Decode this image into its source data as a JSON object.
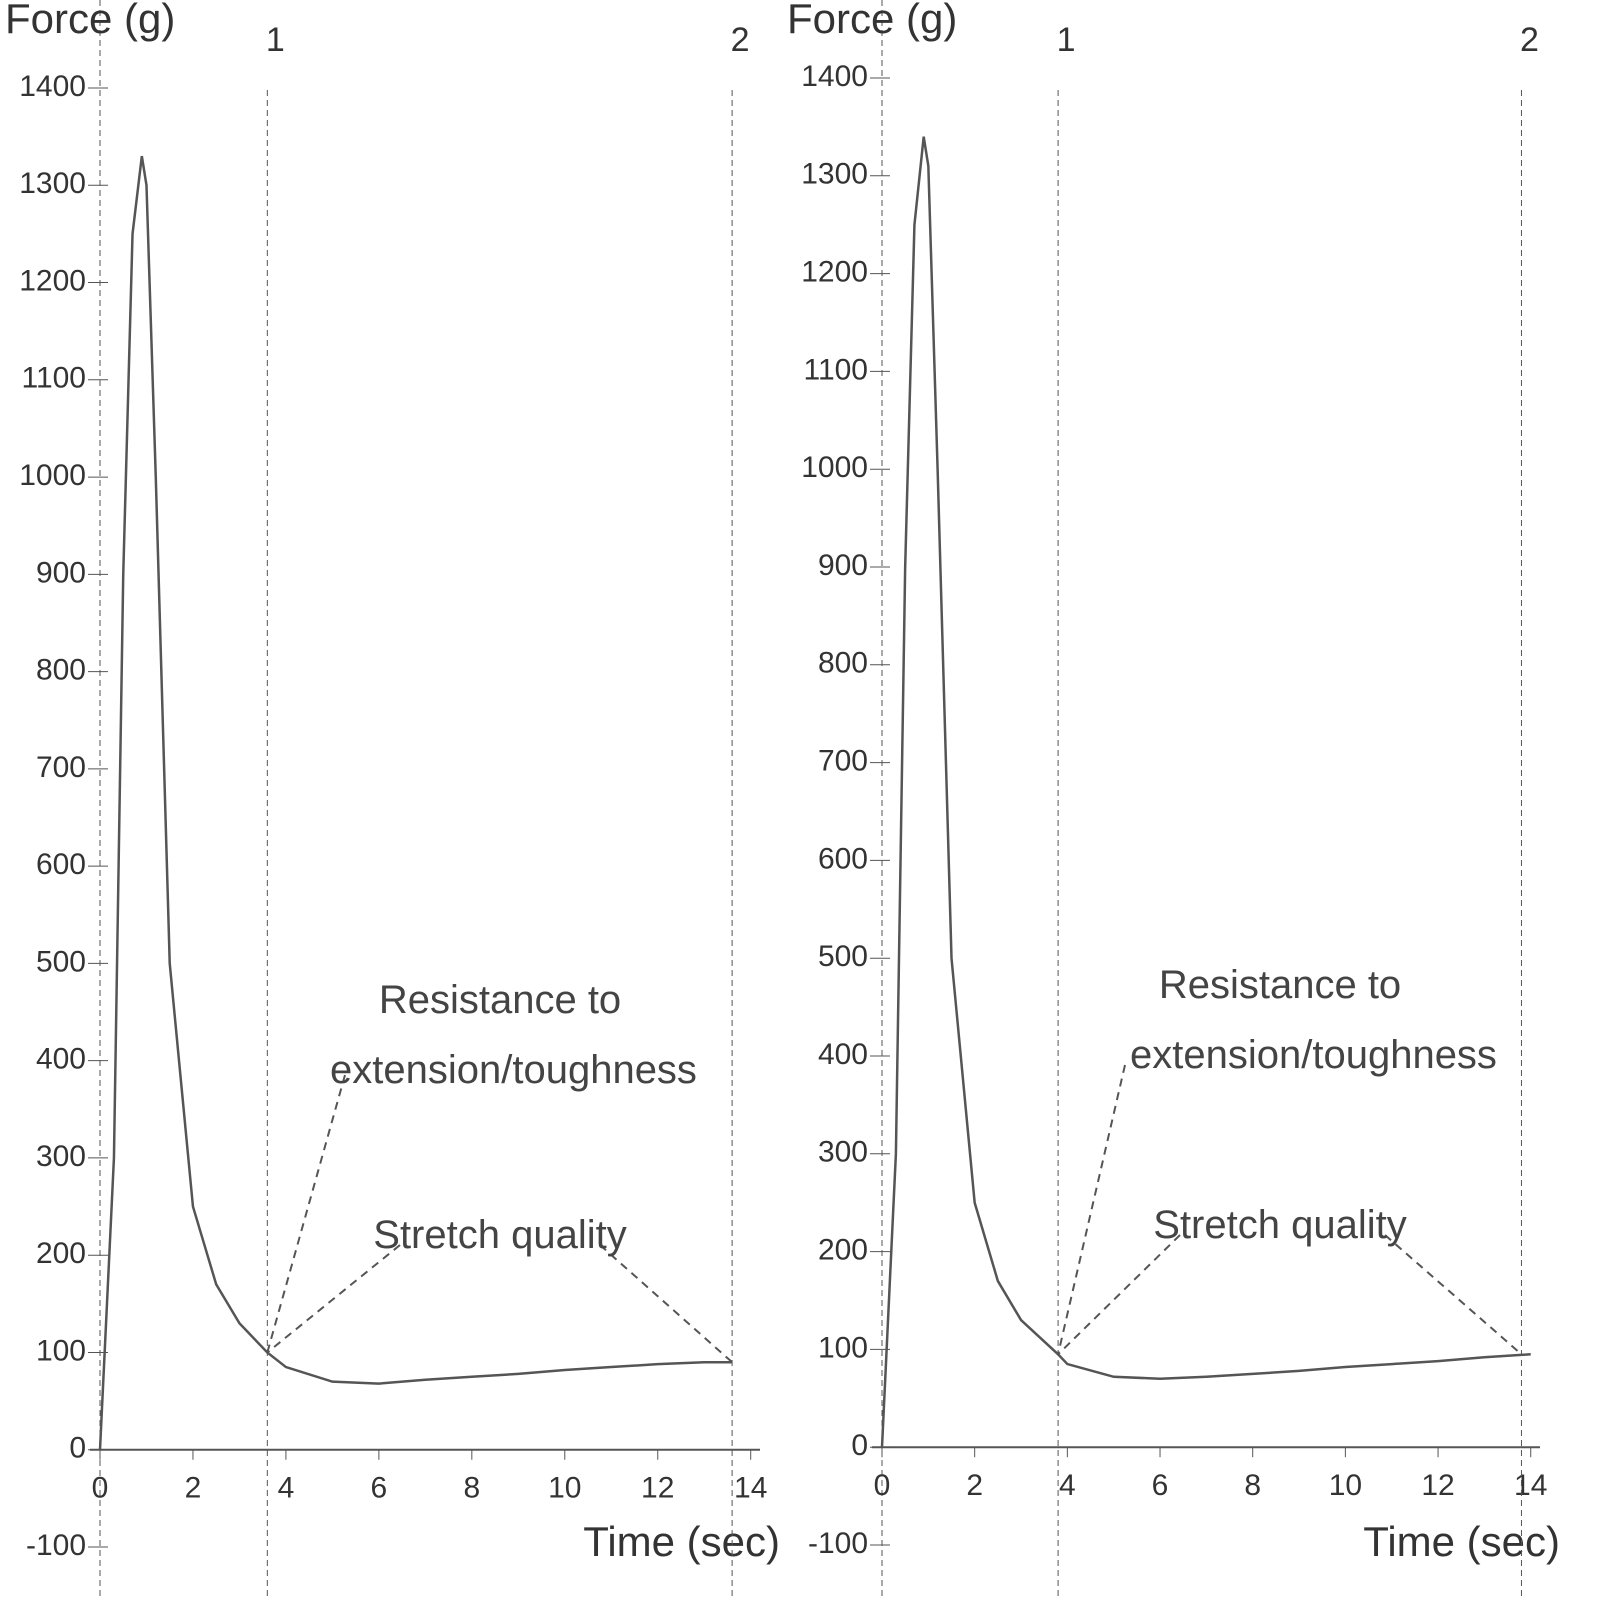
{
  "chart_data": [
    {
      "type": "line",
      "x_label": "Time (sec)",
      "y_label": "Force (g)",
      "color": "#555555",
      "x": [
        0,
        0.3,
        0.5,
        0.7,
        0.9,
        1.0,
        1.2,
        1.5,
        2,
        2.5,
        3,
        3.6,
        4,
        5,
        6,
        7,
        8,
        9,
        10,
        11,
        12,
        13,
        13.6
      ],
      "values": [
        0,
        300,
        900,
        1250,
        1330,
        1300,
        1000,
        500,
        250,
        170,
        130,
        100,
        85,
        70,
        68,
        72,
        75,
        78,
        82,
        85,
        88,
        90,
        90
      ],
      "xlim": [
        0,
        14.2
      ],
      "xticks": [
        0,
        2,
        4,
        6,
        8,
        10,
        12,
        14
      ],
      "ylim": [
        -100,
        1400
      ],
      "yticks": [
        -100,
        0,
        100,
        200,
        300,
        400,
        500,
        600,
        700,
        800,
        900,
        1000,
        1100,
        1200,
        1300,
        1400
      ],
      "markers": [
        {
          "value": 3.6,
          "label": "1"
        },
        {
          "value": 13.6,
          "label": "2"
        }
      ],
      "annotations": [
        "Resistance to extension/toughness",
        "Stretch quality"
      ]
    },
    {
      "type": "line",
      "x_label": "Time (sec)",
      "y_label": "Force (g)",
      "color": "#555555",
      "x": [
        0,
        0.3,
        0.5,
        0.7,
        0.9,
        1.0,
        1.2,
        1.5,
        2,
        2.5,
        3,
        3.8,
        4,
        5,
        6,
        7,
        8,
        9,
        10,
        11,
        12,
        13,
        14
      ],
      "values": [
        0,
        300,
        900,
        1250,
        1340,
        1310,
        1000,
        500,
        250,
        170,
        130,
        95,
        85,
        72,
        70,
        72,
        75,
        78,
        82,
        85,
        88,
        92,
        95
      ],
      "xlim": [
        0,
        14.2
      ],
      "xticks": [
        0,
        2,
        4,
        6,
        8,
        10,
        12,
        14
      ],
      "ylim": [
        -100,
        1400
      ],
      "yticks": [
        -100,
        0,
        100,
        200,
        300,
        400,
        500,
        600,
        700,
        800,
        900,
        1000,
        1100,
        1200,
        1300,
        1400
      ],
      "markers": [
        {
          "value": 3.8,
          "label": "1"
        },
        {
          "value": 13.8,
          "label": "2"
        }
      ],
      "annotations": [
        "Resistance to extension/toughness",
        "Stretch quality"
      ]
    }
  ]
}
